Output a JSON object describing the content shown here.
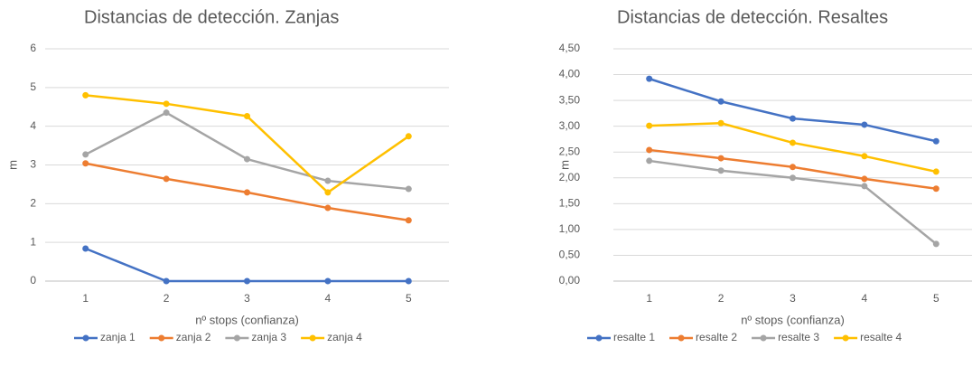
{
  "chart_data": [
    {
      "type": "line",
      "title": "Distancias de detección. Zanjas",
      "ylabel": "m",
      "xlabel": "nº stops (confianza)",
      "categories": [
        "1",
        "2",
        "3",
        "4",
        "5"
      ],
      "ylim": [
        0,
        6
      ],
      "yticks": [
        0,
        1,
        2,
        3,
        4,
        5,
        6
      ],
      "grid": true,
      "legend": "bottom",
      "series": [
        {
          "name": "zanja 1",
          "color": "#4472c4",
          "values": [
            0.84,
            0,
            0,
            0,
            0
          ]
        },
        {
          "name": "zanja 2",
          "color": "#ed7d31",
          "values": [
            3.04,
            2.64,
            2.29,
            1.89,
            1.57
          ]
        },
        {
          "name": "zanja 3",
          "color": "#a5a5a5",
          "values": [
            3.27,
            4.35,
            3.15,
            2.59,
            2.38
          ]
        },
        {
          "name": "zanja 4",
          "color": "#ffc000",
          "values": [
            4.8,
            4.58,
            4.26,
            2.29,
            3.74
          ]
        }
      ]
    },
    {
      "type": "line",
      "title": "Distancias de detección. Resaltes",
      "ylabel": "m",
      "xlabel": "nº stops (confianza)",
      "categories": [
        "1",
        "2",
        "3",
        "4",
        "5"
      ],
      "ylim": [
        0,
        4.5
      ],
      "yticks": [
        {
          "value": 0,
          "label": "0,00"
        },
        {
          "value": 0.5,
          "label": "0,50"
        },
        {
          "value": 1,
          "label": "1,00"
        },
        {
          "value": 1.5,
          "label": "1,50"
        },
        {
          "value": 2,
          "label": "2,00"
        },
        {
          "value": 2.5,
          "label": "2,50"
        },
        {
          "value": 3,
          "label": "3,00"
        },
        {
          "value": 3.5,
          "label": "3,50"
        },
        {
          "value": 4,
          "label": "4,00"
        },
        {
          "value": 4.5,
          "label": "4,50"
        }
      ],
      "grid": true,
      "legend": "bottom",
      "series": [
        {
          "name": "resalte 1",
          "color": "#4472c4",
          "values": [
            3.92,
            3.48,
            3.15,
            3.03,
            2.71
          ]
        },
        {
          "name": "resalte 2",
          "color": "#ed7d31",
          "values": [
            2.54,
            2.38,
            2.21,
            1.98,
            1.79
          ]
        },
        {
          "name": "resalte 3",
          "color": "#a5a5a5",
          "values": [
            2.33,
            2.14,
            2.0,
            1.84,
            0.72
          ]
        },
        {
          "name": "resalte 4",
          "color": "#ffc000",
          "values": [
            3.01,
            3.06,
            2.68,
            2.42,
            2.12
          ]
        }
      ]
    }
  ]
}
